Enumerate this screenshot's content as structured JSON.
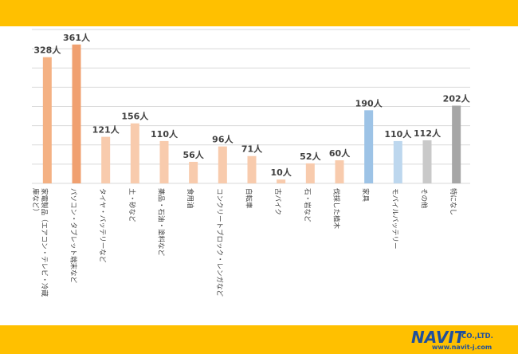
{
  "colors": {
    "band": "#ffc000",
    "grid": "#d9d9d9",
    "label": "#404040",
    "brand": "#1f4f9c"
  },
  "brand": {
    "name": "NAVIT",
    "suffix": "CO.,LTD.",
    "url": "www.navit-j.com"
  },
  "chart_data": {
    "type": "bar",
    "title": "",
    "xlabel": "",
    "ylabel": "",
    "ylim": [
      0,
      400
    ],
    "grid": true,
    "categories": [
      "家電製品（エアコン・テレビ・冷蔵庫など）",
      "パソコン・タブレット端末など",
      "タイヤ・バッテリーなど",
      "土・砂など",
      "薬品・石油・塗料など",
      "食用油",
      "コンクリートブロック・レンガなど",
      "自転車",
      "古バイク",
      "石・岩など",
      "伐採した植木",
      "家具",
      "モバイルバッテリー",
      "その他",
      "特になし"
    ],
    "values": [
      328,
      361,
      121,
      156,
      110,
      56,
      96,
      71,
      10,
      52,
      60,
      190,
      110,
      112,
      202
    ],
    "value_labels": [
      "328人",
      "361人",
      "121人",
      "156人",
      "110人",
      "56人",
      "96人",
      "71人",
      "10人",
      "52人",
      "60人",
      "190人",
      "110人",
      "112人",
      "202人"
    ],
    "bar_colors": [
      "#f4b183",
      "#f0a070",
      "#f8cbad",
      "#f8cbad",
      "#f8cbad",
      "#f8cbad",
      "#f8cbad",
      "#f8cbad",
      "#f8cbad",
      "#f8cbad",
      "#f8cbad",
      "#9dc3e6",
      "#bdd7ee",
      "#c9c9c9",
      "#a6a6a6"
    ]
  }
}
